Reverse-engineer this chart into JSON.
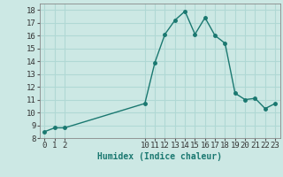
{
  "x": [
    0,
    1,
    2,
    10,
    11,
    12,
    13,
    14,
    15,
    16,
    17,
    18,
    19,
    20,
    21,
    22,
    23
  ],
  "y": [
    8.5,
    8.8,
    8.8,
    10.7,
    13.9,
    16.1,
    17.2,
    17.9,
    16.1,
    17.4,
    16.0,
    15.4,
    11.5,
    11.0,
    11.1,
    10.3,
    10.7
  ],
  "line_color": "#1a7870",
  "marker": "o",
  "markersize": 2.5,
  "linewidth": 1.0,
  "xlabel": "Humidex (Indice chaleur)",
  "xlim": [
    -0.5,
    23.5
  ],
  "ylim": [
    8,
    18.5
  ],
  "yticks": [
    8,
    9,
    10,
    11,
    12,
    13,
    14,
    15,
    16,
    17,
    18
  ],
  "xticks": [
    0,
    1,
    2,
    10,
    11,
    12,
    13,
    14,
    15,
    16,
    17,
    18,
    19,
    20,
    21,
    22,
    23
  ],
  "bg_color": "#cce8e4",
  "grid_color": "#b0d8d4",
  "xlabel_fontsize": 7,
  "tick_fontsize": 6.5
}
